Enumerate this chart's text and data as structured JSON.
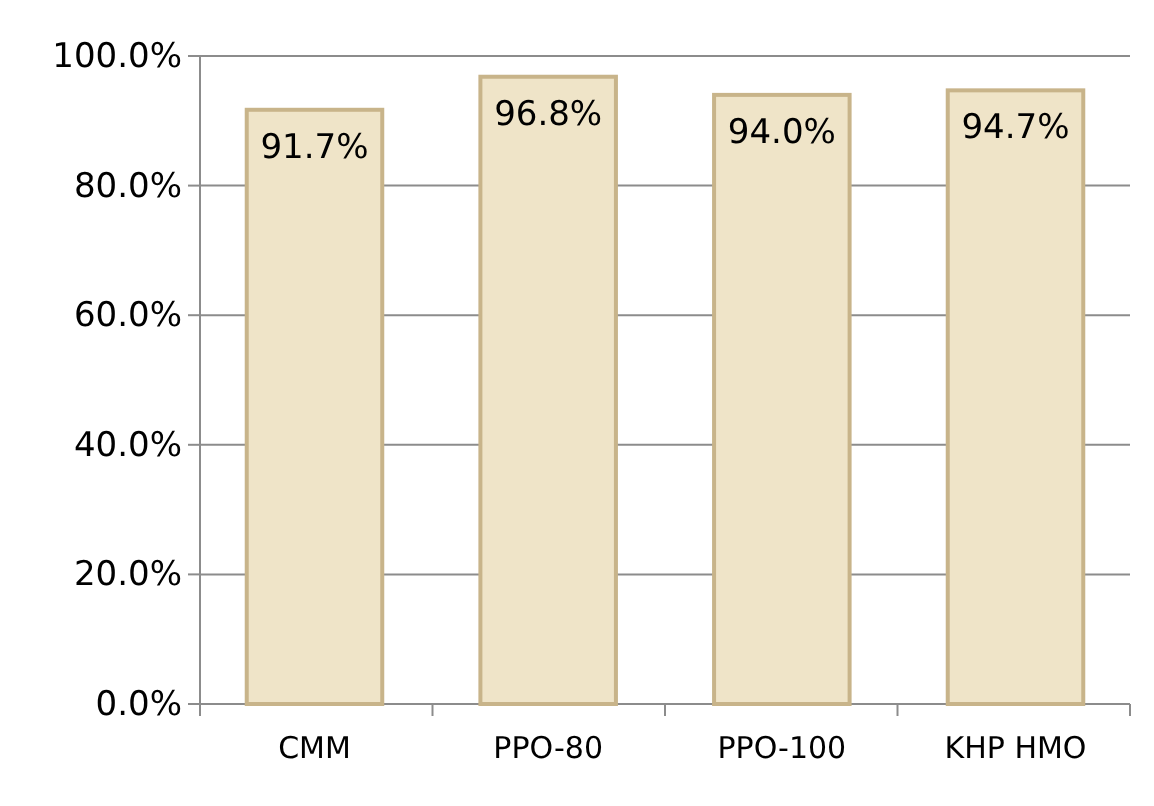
{
  "chart_data": {
    "type": "bar",
    "categories": [
      "CMM",
      "PPO-80",
      "PPO-100",
      "KHP HMO"
    ],
    "values": [
      91.7,
      96.8,
      94.0,
      94.7
    ],
    "color": "#efe4c8",
    "value_labels": [
      "91.7%",
      "96.8%",
      "94.0%",
      "94.7%"
    ],
    "ylim": [
      0,
      100
    ],
    "yticks": [
      {
        "value": 0,
        "label": "0.0%"
      },
      {
        "value": 20,
        "label": "20.0%"
      },
      {
        "value": 40,
        "label": "40.0%"
      },
      {
        "value": 60,
        "label": "60.0%"
      },
      {
        "value": 80,
        "label": "80.0%"
      },
      {
        "value": 100,
        "label": "100.0%"
      }
    ],
    "grid": "y"
  }
}
